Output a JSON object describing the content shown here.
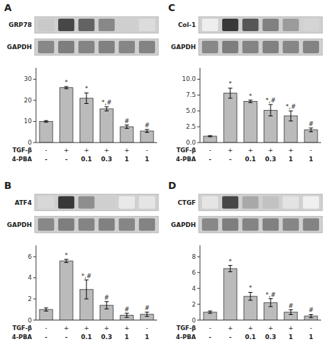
{
  "chart_data": [
    {
      "type": "bar",
      "title": "A",
      "color": "#bbbbbb",
      "grid": false,
      "tick_labels": "y",
      "values": [
        10,
        26,
        21,
        16,
        7.5,
        5.5
      ],
      "errors": [
        0.4,
        0.5,
        2.5,
        1.0,
        0.8,
        0.7
      ],
      "annotations": [
        null,
        "*",
        "*",
        "*,#",
        "#",
        "#"
      ],
      "ylim": [
        0,
        35.4
      ],
      "yticks": [
        0,
        10,
        20,
        30
      ],
      "category_rows": [
        {
          "name": "TGF-β",
          "labels": [
            "-",
            "+",
            "+",
            "+",
            "+",
            "-"
          ]
        },
        {
          "name": "4-PBA",
          "labels": [
            "-",
            "-",
            "0.1",
            "0.3",
            "1",
            "1"
          ]
        }
      ],
      "blot": {
        "rows": [
          {
            "name": "GRP78",
            "intensities": [
              0.25,
              0.85,
              0.72,
              0.55,
              0.22,
              0.16
            ]
          },
          {
            "name": "GAPDH",
            "intensities": [
              0.72,
              0.78,
              0.74,
              0.76,
              0.73,
              0.75
            ]
          }
        ]
      }
    },
    {
      "type": "bar",
      "title": "C",
      "color": "#bbbbbb",
      "grid": false,
      "tick_labels": "y",
      "values": [
        1.0,
        7.8,
        6.5,
        5.1,
        4.2,
        2.0
      ],
      "errors": [
        0.1,
        0.8,
        0.2,
        0.9,
        0.8,
        0.3
      ],
      "annotations": [
        null,
        "*",
        "*",
        "*,#",
        "*,#",
        "#"
      ],
      "ylim": [
        0,
        11.8
      ],
      "yticks": [
        {
          "value": 0,
          "label": "0.0"
        },
        2.5,
        {
          "value": 5,
          "label": "5.0"
        },
        7.5,
        {
          "value": 10,
          "label": "10.0"
        }
      ],
      "category_rows": [
        {
          "name": "TGF-β",
          "labels": [
            "-",
            "+",
            "+",
            "+",
            "+",
            "-"
          ]
        },
        {
          "name": "4-PBA",
          "labels": [
            "-",
            "-",
            "0.1",
            "0.3",
            "1",
            "1"
          ]
        }
      ],
      "blot": {
        "rows": [
          {
            "name": "Col-1",
            "intensities": [
              0.08,
              0.92,
              0.78,
              0.58,
              0.46,
              0.2
            ]
          },
          {
            "name": "GAPDH",
            "intensities": [
              0.72,
              0.78,
              0.74,
              0.76,
              0.73,
              0.75
            ]
          }
        ]
      }
    },
    {
      "type": "bar",
      "title": "B",
      "color": "#bbbbbb",
      "grid": false,
      "tick_labels": "y",
      "values": [
        1.0,
        5.6,
        2.9,
        1.4,
        0.45,
        0.55
      ],
      "errors": [
        0.15,
        0.15,
        0.9,
        0.35,
        0.2,
        0.2
      ],
      "annotations": [
        null,
        "*",
        "*,#",
        "#",
        "#",
        "#"
      ],
      "ylim": [
        0,
        7.08
      ],
      "yticks": [
        0,
        2,
        4,
        6
      ],
      "category_rows": [
        {
          "name": "TGF-β",
          "labels": [
            "-",
            "+",
            "+",
            "+",
            "+",
            "-"
          ]
        },
        {
          "name": "4-PBA",
          "labels": [
            "-",
            "-",
            "0.1",
            "0.3",
            "1",
            "1"
          ]
        }
      ],
      "blot": {
        "rows": [
          {
            "name": "ATF4",
            "intensities": [
              0.18,
              0.92,
              0.52,
              0.22,
              0.1,
              0.12
            ]
          },
          {
            "name": "GAPDH",
            "intensities": [
              0.72,
              0.78,
              0.74,
              0.76,
              0.73,
              0.75
            ]
          }
        ]
      }
    },
    {
      "type": "bar",
      "title": "D",
      "color": "#bbbbbb",
      "grid": false,
      "tick_labels": "y",
      "values": [
        1.0,
        6.5,
        3.0,
        2.2,
        1.0,
        0.5
      ],
      "errors": [
        0.15,
        0.4,
        0.5,
        0.5,
        0.3,
        0.2
      ],
      "annotations": [
        null,
        "*",
        "*",
        "*,#",
        "#",
        "#"
      ],
      "ylim": [
        0,
        9.44
      ],
      "yticks": [
        0,
        2,
        4,
        6,
        8
      ],
      "category_rows": [
        {
          "name": "TGF-β",
          "labels": [
            "-",
            "+",
            "+",
            "+",
            "+",
            "-"
          ]
        },
        {
          "name": "4-PBA",
          "labels": [
            "-",
            "-",
            "0.1",
            "0.3",
            "1",
            "1"
          ]
        }
      ],
      "blot": {
        "rows": [
          {
            "name": "CTGF",
            "intensities": [
              0.12,
              0.85,
              0.4,
              0.28,
              0.13,
              0.07
            ]
          },
          {
            "name": "GAPDH",
            "intensities": [
              0.72,
              0.78,
              0.74,
              0.76,
              0.73,
              0.75
            ]
          }
        ]
      }
    }
  ]
}
